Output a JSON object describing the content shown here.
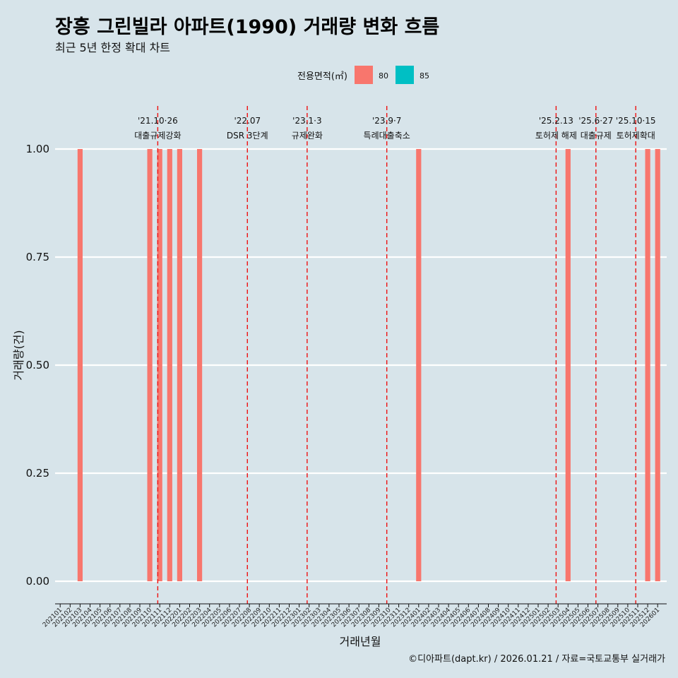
{
  "title": "장흥 그린빌라 아파트(1990) 거래량 변화 흐름",
  "subtitle": "최근 5년 한정 확대 차트",
  "caption": "©디아파트(dapt.kr) / 2026.01.21 / 자료=국토교통부 실거래가",
  "colors": {
    "background": "#d7e4ea",
    "series80": "#f8766d",
    "series85": "#00bfc4",
    "event_line": "#ee1111"
  },
  "chart_data": {
    "type": "bar",
    "xlabel": "거래년월",
    "ylabel": "거래량(건)",
    "ylim": [
      0,
      1.0
    ],
    "yticks": [
      "0.00",
      "0.25",
      "0.50",
      "0.75",
      "1.00"
    ],
    "legend": {
      "title": "전용면적(㎡)",
      "placement": "top",
      "entries": [
        "80",
        "85"
      ]
    },
    "categories": [
      "202101",
      "202102",
      "202103",
      "202104",
      "202105",
      "202106",
      "202107",
      "202108",
      "202109",
      "202110",
      "202111",
      "202112",
      "202201",
      "202202",
      "202203",
      "202204",
      "202205",
      "202206",
      "202207",
      "202208",
      "202209",
      "202210",
      "202211",
      "202212",
      "202301",
      "202302",
      "202303",
      "202304",
      "202305",
      "202306",
      "202307",
      "202308",
      "202309",
      "202310",
      "202311",
      "202312",
      "202401",
      "202402",
      "202403",
      "202404",
      "202405",
      "202406",
      "202407",
      "202408",
      "202409",
      "202410",
      "202411",
      "202412",
      "202501",
      "202502",
      "202503",
      "202504",
      "202505",
      "202506",
      "202507",
      "202508",
      "202509",
      "202510",
      "202511",
      "202512",
      "202601"
    ],
    "series": [
      {
        "name": "80",
        "values": [
          0,
          0,
          1,
          0,
          0,
          0,
          0,
          0,
          0,
          1,
          1,
          1,
          1,
          0,
          1,
          0,
          0,
          0,
          0,
          0,
          0,
          0,
          0,
          0,
          0,
          0,
          0,
          0,
          0,
          0,
          0,
          0,
          0,
          0,
          0,
          0,
          1,
          0,
          0,
          0,
          0,
          0,
          0,
          0,
          0,
          0,
          0,
          0,
          0,
          0,
          0,
          1,
          0,
          0,
          0,
          0,
          0,
          0,
          0,
          1,
          1
        ]
      },
      {
        "name": "85",
        "values": [
          0,
          0,
          0,
          0,
          0,
          0,
          0,
          0,
          0,
          0,
          0,
          0,
          0,
          0,
          0,
          0,
          0,
          0,
          0,
          0,
          0,
          0,
          0,
          0,
          0,
          0,
          0,
          0,
          0,
          0,
          0,
          0,
          0,
          0,
          0,
          0,
          0,
          0,
          0,
          0,
          0,
          0,
          0,
          0,
          0,
          0,
          0,
          0,
          0,
          0,
          0,
          0,
          0,
          0,
          0,
          0,
          0,
          0,
          0,
          0,
          0
        ]
      }
    ],
    "events": [
      {
        "date_label": "'21.10·26",
        "text": "대출규제강화",
        "month_index": 9.8
      },
      {
        "date_label": "'22.07",
        "text": "DSR 3단계",
        "month_index": 18.8
      },
      {
        "date_label": "'23.1·3",
        "text": "규제완화",
        "month_index": 24.8
      },
      {
        "date_label": "'23.9·7",
        "text": "특례대출축소",
        "month_index": 32.8
      },
      {
        "date_label": "'25.2.13",
        "text": "토허제 해제",
        "month_index": 49.8
      },
      {
        "date_label": "'25.6·27",
        "text": "대출규제",
        "month_index": 53.8
      },
      {
        "date_label": "'25.10·15",
        "text": "토허제확대",
        "month_index": 57.8
      }
    ]
  }
}
